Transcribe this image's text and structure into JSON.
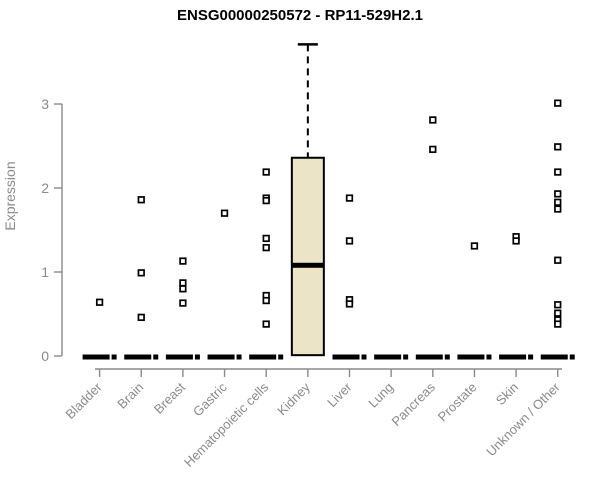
{
  "chart_data": {
    "type": "boxplot",
    "title": "ENSG00000250572 - RP11-529H2.1",
    "ylabel": "Expression",
    "xlabel": "",
    "yticks": [
      0,
      1,
      2,
      3
    ],
    "ylim": [
      0,
      3.75
    ],
    "grid": false,
    "legend": "none",
    "colors": {
      "box_fill": "#EBE4C7",
      "axis": "#8a8a8a",
      "tick_text": "#8a8a8a",
      "marker_stroke": "#000000",
      "marker_fill": "#ffffff",
      "median": "#000000"
    },
    "groups": [
      {
        "label": "Bladder",
        "median": 0,
        "points": [
          0.64
        ]
      },
      {
        "label": "Brain",
        "median": 0,
        "points": [
          1.86,
          0.99,
          0.46
        ]
      },
      {
        "label": "Breast",
        "median": 0,
        "points": [
          1.13,
          0.87,
          0.8,
          0.63
        ]
      },
      {
        "label": "Gastric",
        "median": 0,
        "points": [
          1.7
        ]
      },
      {
        "label": "Hematopoietic cells",
        "median": 0,
        "points": [
          2.19,
          1.88,
          1.85,
          1.4,
          1.29,
          0.72,
          0.66,
          0.38
        ]
      },
      {
        "label": "Kidney",
        "box": {
          "whisker_high": 3.71,
          "q3": 2.36,
          "median": 1.08,
          "q1": 0.01,
          "whisker_low": 0.0
        },
        "points": []
      },
      {
        "label": "Liver",
        "median": 0,
        "points": [
          1.88,
          1.37,
          0.67,
          0.62
        ]
      },
      {
        "label": "Lung",
        "median": 0,
        "points": []
      },
      {
        "label": "Pancreas",
        "median": 0,
        "points": [
          2.81,
          2.46
        ]
      },
      {
        "label": "Prostate",
        "median": 0,
        "points": [
          1.31
        ]
      },
      {
        "label": "Skin",
        "median": 0,
        "points": [
          1.42,
          1.37
        ]
      },
      {
        "label": "Unknown / Other",
        "median": 0,
        "points": [
          3.01,
          2.49,
          2.19,
          1.93,
          1.83,
          1.75,
          1.14,
          0.61,
          0.51,
          0.43,
          0.38
        ]
      }
    ]
  }
}
